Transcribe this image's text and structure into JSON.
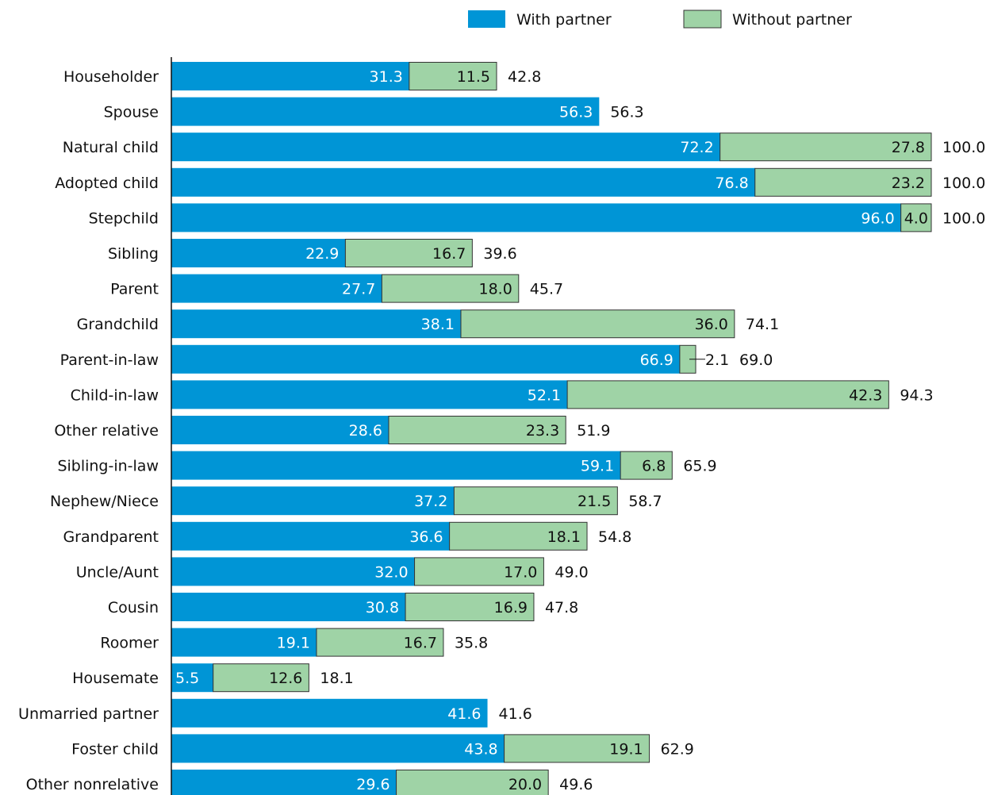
{
  "colors": {
    "with_partner": "#0095d6",
    "without_partner": "#9fd3a6",
    "text": "#111111",
    "axis": "#111111"
  },
  "legend": [
    {
      "label": "With partner",
      "color": "#0095d6"
    },
    {
      "label": "Without partner",
      "color": "#9fd3a6"
    }
  ],
  "chart_data": {
    "type": "bar",
    "orientation": "horizontal",
    "stacked": true,
    "title": "",
    "xlabel": "",
    "ylabel": "",
    "xlim": [
      0,
      100
    ],
    "legend_position": "top-right",
    "grid": false,
    "categories": [
      "Householder",
      "Spouse",
      "Natural child",
      "Adopted child",
      "Stepchild",
      "Sibling",
      "Parent",
      "Grandchild",
      "Parent-in-law",
      "Child-in-law",
      "Other relative",
      "Sibling-in-law",
      "Nephew/Niece",
      "Grandparent",
      "Uncle/Aunt",
      "Cousin",
      "Roomer",
      "Housemate",
      "Unmarried partner",
      "Foster child",
      "Other nonrelative"
    ],
    "series": [
      {
        "name": "With partner",
        "color": "#0095d6",
        "values": [
          31.3,
          56.3,
          72.2,
          76.8,
          96.0,
          22.9,
          27.7,
          38.1,
          66.9,
          52.1,
          28.6,
          59.1,
          37.2,
          36.6,
          32.0,
          30.8,
          19.1,
          5.5,
          41.6,
          43.8,
          29.6
        ]
      },
      {
        "name": "Without partner",
        "color": "#9fd3a6",
        "values": [
          11.5,
          0,
          27.8,
          23.2,
          4.0,
          16.7,
          18.0,
          36.0,
          2.1,
          42.3,
          23.3,
          6.8,
          21.5,
          18.1,
          17.0,
          16.9,
          16.7,
          12.6,
          0,
          19.1,
          20.0
        ]
      }
    ],
    "totals": [
      42.8,
      56.3,
      100.0,
      100.0,
      100.0,
      39.6,
      45.7,
      74.1,
      69.0,
      94.3,
      51.9,
      65.9,
      58.7,
      54.8,
      49.0,
      47.8,
      35.8,
      18.1,
      41.6,
      62.9,
      49.6
    ]
  }
}
